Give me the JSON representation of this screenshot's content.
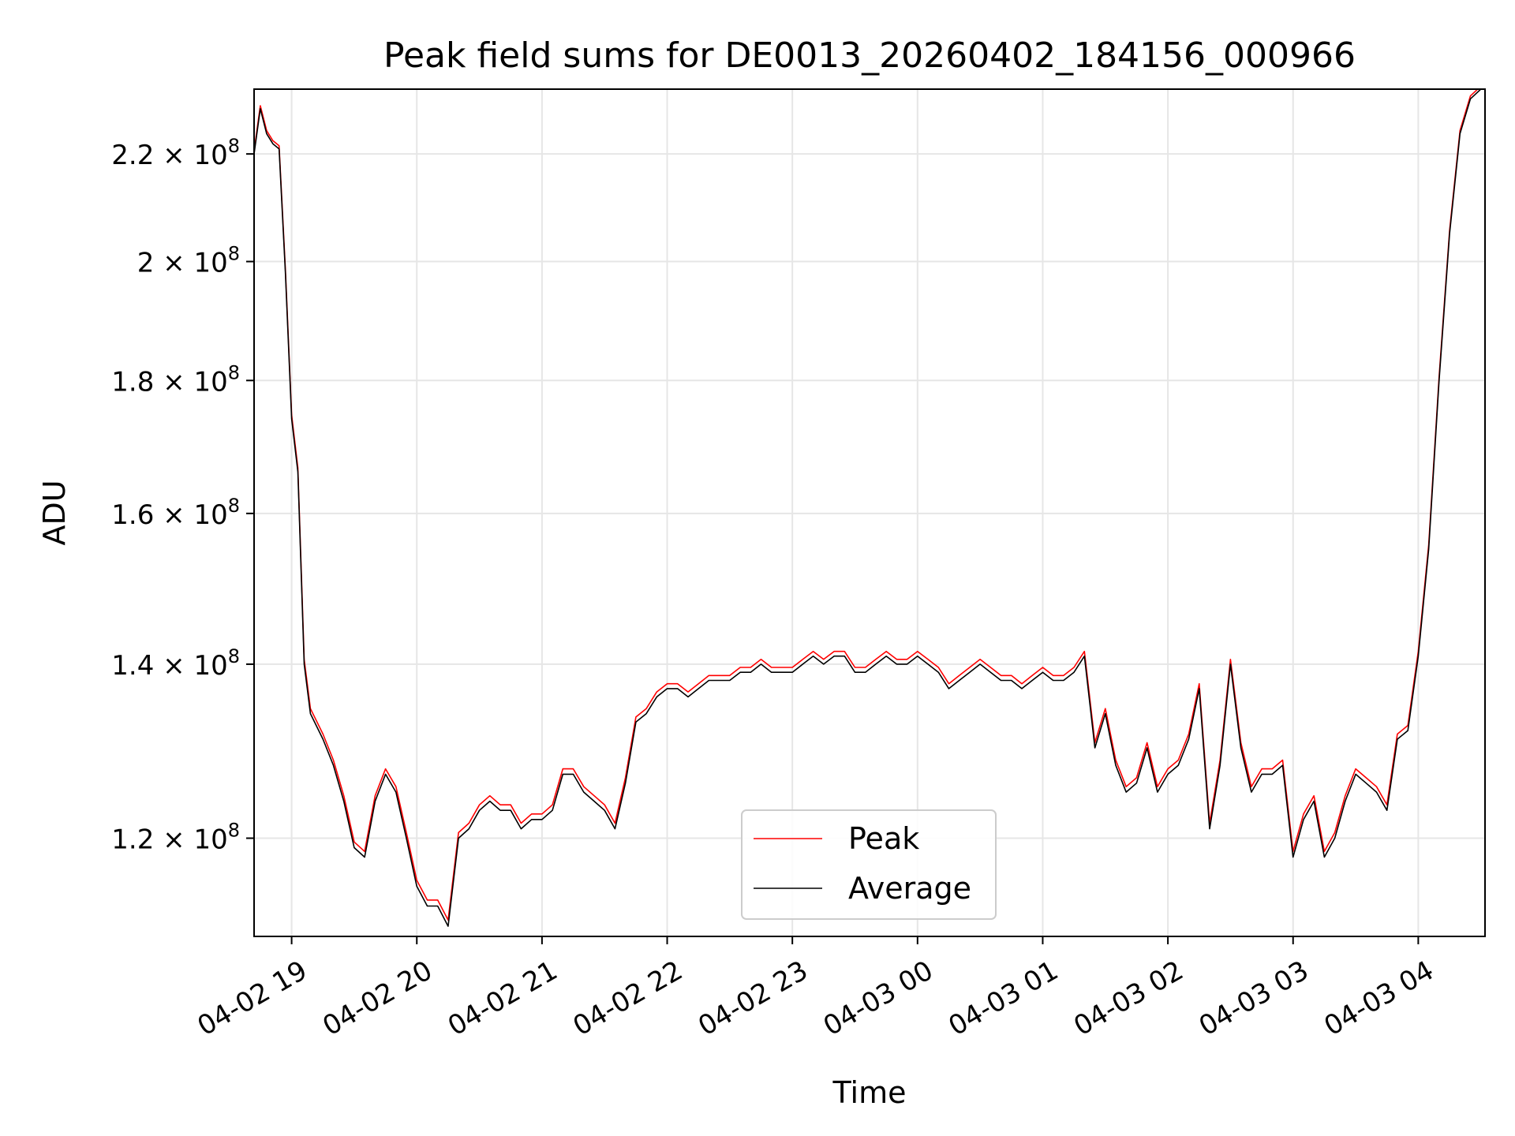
{
  "chart_data": {
    "type": "line",
    "title": "Peak field sums for DE0013_20260402_184156_000966",
    "xlabel": "Time",
    "ylabel": "ADU",
    "y_scale": "log",
    "grid": true,
    "legend_position": "bottom-center",
    "xlim": [
      "2026-04-02 18:42",
      "2026-04-03 04:32"
    ],
    "ylim": [
      110000000,
      233000000
    ],
    "x_ticks": [
      {
        "value": "2026-04-02 19:00",
        "label": "04-02 19"
      },
      {
        "value": "2026-04-02 20:00",
        "label": "04-02 20"
      },
      {
        "value": "2026-04-02 21:00",
        "label": "04-02 21"
      },
      {
        "value": "2026-04-02 22:00",
        "label": "04-02 22"
      },
      {
        "value": "2026-04-02 23:00",
        "label": "04-02 23"
      },
      {
        "value": "2026-04-03 00:00",
        "label": "04-03 00"
      },
      {
        "value": "2026-04-03 01:00",
        "label": "04-03 01"
      },
      {
        "value": "2026-04-03 02:00",
        "label": "04-03 02"
      },
      {
        "value": "2026-04-03 03:00",
        "label": "04-03 03"
      },
      {
        "value": "2026-04-03 04:00",
        "label": "04-03 04"
      }
    ],
    "y_ticks": [
      {
        "value": 120000000,
        "mantissa": "1.2",
        "exponent": "8"
      },
      {
        "value": 140000000,
        "mantissa": "1.4",
        "exponent": "8"
      },
      {
        "value": 160000000,
        "mantissa": "1.6",
        "exponent": "8"
      },
      {
        "value": 180000000,
        "mantissa": "1.8",
        "exponent": "8"
      },
      {
        "value": 200000000,
        "mantissa": "2",
        "exponent": "8"
      },
      {
        "value": 220000000,
        "mantissa": "2.2",
        "exponent": "8"
      }
    ],
    "series": [
      {
        "name": "Peak",
        "color": "#ff0000",
        "offset": 600000
      },
      {
        "name": "Average",
        "color": "#000000",
        "offset": 0
      }
    ],
    "x": [
      "2026-04-02 18:42",
      "2026-04-02 18:45",
      "2026-04-02 18:48",
      "2026-04-02 18:51",
      "2026-04-02 18:54",
      "2026-04-02 18:57",
      "2026-04-02 19:00",
      "2026-04-02 19:03",
      "2026-04-02 19:06",
      "2026-04-02 19:09",
      "2026-04-02 19:15",
      "2026-04-02 19:20",
      "2026-04-02 19:25",
      "2026-04-02 19:30",
      "2026-04-02 19:35",
      "2026-04-02 19:40",
      "2026-04-02 19:45",
      "2026-04-02 19:50",
      "2026-04-02 19:55",
      "2026-04-02 20:00",
      "2026-04-02 20:05",
      "2026-04-02 20:10",
      "2026-04-02 20:15",
      "2026-04-02 20:20",
      "2026-04-02 20:25",
      "2026-04-02 20:30",
      "2026-04-02 20:35",
      "2026-04-02 20:40",
      "2026-04-02 20:45",
      "2026-04-02 20:50",
      "2026-04-02 20:55",
      "2026-04-02 21:00",
      "2026-04-02 21:05",
      "2026-04-02 21:10",
      "2026-04-02 21:15",
      "2026-04-02 21:20",
      "2026-04-02 21:25",
      "2026-04-02 21:30",
      "2026-04-02 21:35",
      "2026-04-02 21:40",
      "2026-04-02 21:45",
      "2026-04-02 21:50",
      "2026-04-02 21:55",
      "2026-04-02 22:00",
      "2026-04-02 22:05",
      "2026-04-02 22:10",
      "2026-04-02 22:15",
      "2026-04-02 22:20",
      "2026-04-02 22:25",
      "2026-04-02 22:30",
      "2026-04-02 22:35",
      "2026-04-02 22:40",
      "2026-04-02 22:45",
      "2026-04-02 22:50",
      "2026-04-02 22:55",
      "2026-04-02 23:00",
      "2026-04-02 23:05",
      "2026-04-02 23:10",
      "2026-04-02 23:15",
      "2026-04-02 23:20",
      "2026-04-02 23:25",
      "2026-04-02 23:30",
      "2026-04-02 23:35",
      "2026-04-02 23:40",
      "2026-04-02 23:45",
      "2026-04-02 23:50",
      "2026-04-02 23:55",
      "2026-04-03 00:00",
      "2026-04-03 00:05",
      "2026-04-03 00:10",
      "2026-04-03 00:15",
      "2026-04-03 00:20",
      "2026-04-03 00:25",
      "2026-04-03 00:30",
      "2026-04-03 00:35",
      "2026-04-03 00:40",
      "2026-04-03 00:45",
      "2026-04-03 00:50",
      "2026-04-03 00:55",
      "2026-04-03 01:00",
      "2026-04-03 01:05",
      "2026-04-03 01:10",
      "2026-04-03 01:15",
      "2026-04-03 01:20",
      "2026-04-03 01:25",
      "2026-04-03 01:30",
      "2026-04-03 01:35",
      "2026-04-03 01:40",
      "2026-04-03 01:45",
      "2026-04-03 01:50",
      "2026-04-03 01:55",
      "2026-04-03 02:00",
      "2026-04-03 02:05",
      "2026-04-03 02:10",
      "2026-04-03 02:15",
      "2026-04-03 02:20",
      "2026-04-03 02:25",
      "2026-04-03 02:30",
      "2026-04-03 02:35",
      "2026-04-03 02:40",
      "2026-04-03 02:45",
      "2026-04-03 02:50",
      "2026-04-03 02:55",
      "2026-04-03 03:00",
      "2026-04-03 03:05",
      "2026-04-03 03:10",
      "2026-04-03 03:15",
      "2026-04-03 03:20",
      "2026-04-03 03:25",
      "2026-04-03 03:30",
      "2026-04-03 03:35",
      "2026-04-03 03:40",
      "2026-04-03 03:45",
      "2026-04-03 03:50",
      "2026-04-03 03:55",
      "2026-04-03 04:00",
      "2026-04-03 04:05",
      "2026-04-03 04:10",
      "2026-04-03 04:15",
      "2026-04-03 04:20",
      "2026-04-03 04:25",
      "2026-04-03 04:30"
    ],
    "values": [
      220000000,
      229000000,
      224000000,
      222000000,
      221000000,
      198000000,
      174000000,
      166000000,
      140000000,
      134000000,
      131000000,
      128000000,
      124000000,
      119000000,
      118000000,
      124000000,
      127000000,
      125000000,
      120000000,
      115000000,
      113000000,
      113000000,
      111000000,
      120000000,
      121000000,
      123000000,
      124000000,
      123000000,
      123000000,
      121000000,
      122000000,
      122000000,
      123000000,
      127000000,
      127000000,
      125000000,
      124000000,
      123000000,
      121000000,
      126000000,
      133000000,
      134000000,
      136000000,
      137000000,
      137000000,
      136000000,
      137000000,
      138000000,
      138000000,
      138000000,
      139000000,
      139000000,
      140000000,
      139000000,
      139000000,
      139000000,
      140000000,
      141000000,
      140000000,
      141000000,
      141000000,
      139000000,
      139000000,
      140000000,
      141000000,
      140000000,
      140000000,
      141000000,
      140000000,
      139000000,
      137000000,
      138000000,
      139000000,
      140000000,
      139000000,
      138000000,
      138000000,
      137000000,
      138000000,
      139000000,
      138000000,
      138000000,
      139000000,
      141000000,
      130000000,
      134000000,
      128000000,
      125000000,
      126000000,
      130000000,
      125000000,
      127000000,
      128000000,
      131000000,
      137000000,
      121000000,
      128000000,
      140000000,
      130000000,
      125000000,
      127000000,
      127000000,
      128000000,
      118000000,
      122000000,
      124000000,
      118000000,
      120000000,
      124000000,
      127000000,
      126000000,
      125000000,
      123000000,
      131000000,
      132000000,
      141000000,
      155000000,
      180000000,
      205000000,
      224000000,
      231000000,
      233000000
    ]
  },
  "legend": {
    "items": [
      {
        "label": "Peak",
        "color": "#ff0000"
      },
      {
        "label": "Average",
        "color": "#000000"
      }
    ]
  }
}
